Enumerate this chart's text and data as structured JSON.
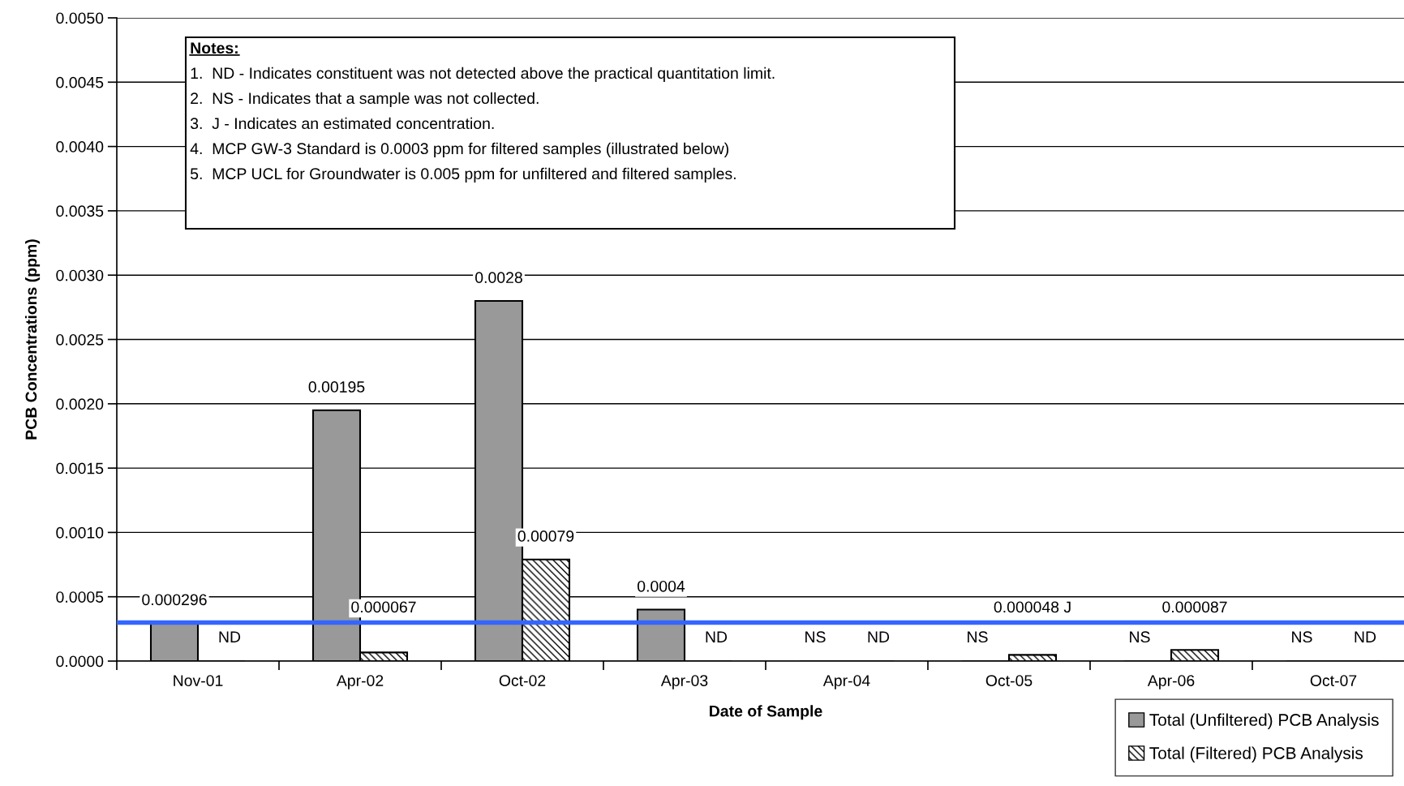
{
  "chart_data": {
    "type": "bar",
    "categories": [
      "Nov-01",
      "Apr-02",
      "Oct-02",
      "Apr-03",
      "Apr-04",
      "Oct-05",
      "Apr-06",
      "Oct-07"
    ],
    "series": [
      {
        "name": "Total (Unfiltered) PCB Analysis",
        "color": "#999999",
        "values": [
          0.000296,
          0.00195,
          0.0028,
          0.0004,
          null,
          null,
          null,
          null
        ],
        "value_labels": [
          "0.000296",
          "0.00195",
          "0.0028",
          "0.0004",
          "NS",
          "NS",
          "NS",
          "NS"
        ]
      },
      {
        "name": "Total (Filtered) PCB Analysis",
        "color": "#000000",
        "values": [
          null,
          6.7e-05,
          0.00079,
          null,
          null,
          4.8e-05,
          8.7e-05,
          null
        ],
        "value_labels": [
          "ND",
          "0.000067",
          "0.00079",
          "ND",
          "ND",
          "0.000048 J",
          "0.000087",
          "ND"
        ]
      }
    ],
    "xlabel": "Date of Sample",
    "ylabel": "PCB Concentrations (ppm)",
    "ylim": [
      0,
      0.005
    ],
    "yticks": [
      {
        "value": 0,
        "label": "0.0000"
      },
      {
        "value": 0.0005,
        "label": "0.0005"
      },
      {
        "value": 0.001,
        "label": "0.0010"
      },
      {
        "value": 0.0015,
        "label": "0.0015"
      },
      {
        "value": 0.002,
        "label": "0.0020"
      },
      {
        "value": 0.0025,
        "label": "0.0025"
      },
      {
        "value": 0.003,
        "label": "0.0030"
      },
      {
        "value": 0.0035,
        "label": "0.0035"
      },
      {
        "value": 0.004,
        "label": "0.0040"
      },
      {
        "value": 0.0045,
        "label": "0.0045"
      },
      {
        "value": 0.005,
        "label": "0.0050"
      }
    ],
    "ref_lines": [
      {
        "axis": "y",
        "value": 0.0003,
        "color": "#3366ff"
      }
    ],
    "annotations": [
      "Notes:",
      "1.  ND - Indicates constituent was not detected above the practical quantitation limit.",
      "2.  NS - Indicates that a sample was not collected.",
      "3.  J - Indicates an estimated concentration.",
      "4.  MCP GW-3 Standard is 0.0003 ppm for filtered samples (illustrated below)",
      "5.  MCP UCL for Groundwater is 0.005 ppm for unfiltered and filtered samples."
    ],
    "grid": "y",
    "legend": "bottom right"
  }
}
